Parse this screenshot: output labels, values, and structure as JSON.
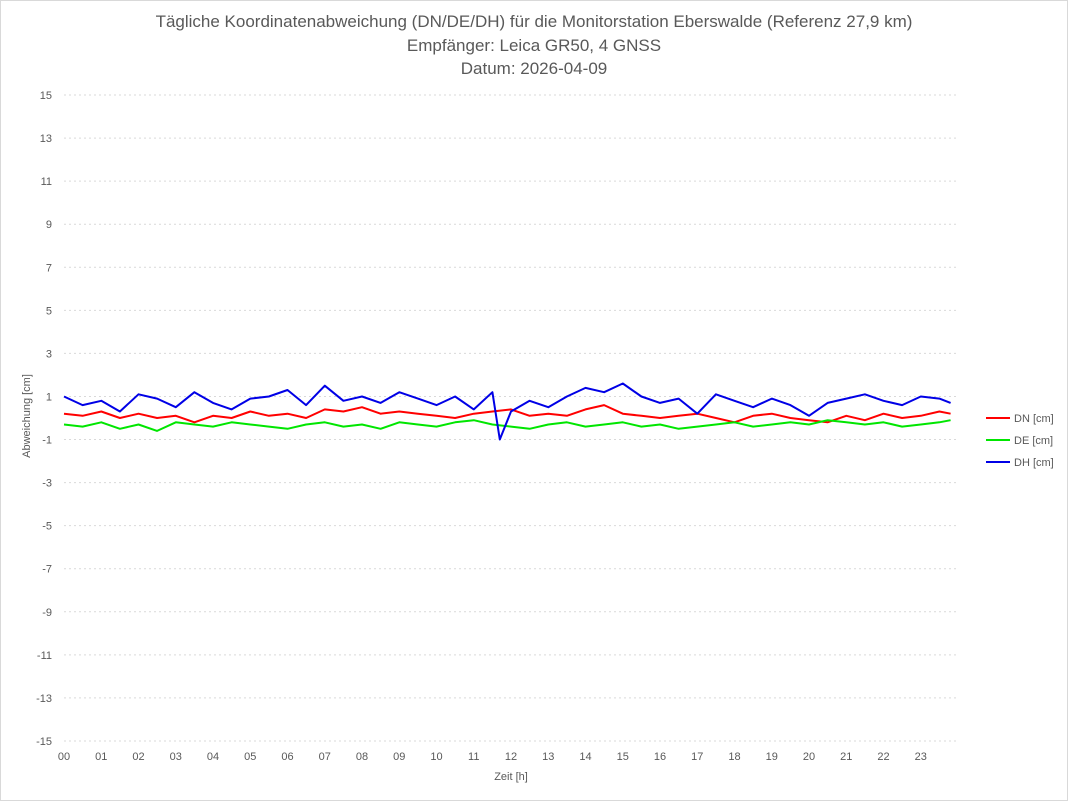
{
  "chart_data": {
    "type": "line",
    "title_lines": [
      "Tägliche Koordinatenabweichung (DN/DE/DH) für die Monitorstation Eberswalde (Referenz 27,9 km)",
      "Empfänger: Leica GR50, 4 GNSS",
      "Datum: 2026-04-09"
    ],
    "xlabel": "Zeit [h]",
    "ylabel": "Abweichung [cm]",
    "x_tick_labels": [
      "00",
      "01",
      "02",
      "03",
      "04",
      "05",
      "06",
      "07",
      "08",
      "09",
      "10",
      "11",
      "12",
      "13",
      "14",
      "15",
      "16",
      "17",
      "18",
      "19",
      "20",
      "21",
      "22",
      "23"
    ],
    "y_ticks": [
      15,
      13,
      11,
      9,
      7,
      5,
      3,
      1,
      -1,
      -3,
      -5,
      -7,
      -9,
      -11,
      -13,
      -15
    ],
    "xlim": [
      0,
      24
    ],
    "ylim": [
      -15,
      15
    ],
    "grid": "horizontal dotted",
    "legend_position": "right",
    "series": [
      {
        "name": "DN [cm]",
        "color": "#ff0000",
        "x": [
          0,
          0.5,
          1,
          1.5,
          2,
          2.5,
          3,
          3.5,
          4,
          4.5,
          5,
          5.5,
          6,
          6.5,
          7,
          7.5,
          8,
          8.5,
          9,
          9.5,
          10,
          10.5,
          11,
          11.5,
          12,
          12.5,
          13,
          13.5,
          14,
          14.5,
          15,
          15.5,
          16,
          16.5,
          17,
          17.5,
          18,
          18.5,
          19,
          19.5,
          20,
          20.5,
          21,
          21.5,
          22,
          22.5,
          23,
          23.5,
          23.8
        ],
        "y": [
          0.2,
          0.1,
          0.3,
          0,
          0.2,
          0,
          0.1,
          -0.2,
          0.1,
          0,
          0.3,
          0.1,
          0.2,
          0,
          0.4,
          0.3,
          0.5,
          0.2,
          0.3,
          0.2,
          0.1,
          0,
          0.2,
          0.3,
          0.4,
          0.1,
          0.2,
          0.1,
          0.4,
          0.6,
          0.2,
          0.1,
          0,
          0.1,
          0.2,
          0,
          -0.2,
          0.1,
          0.2,
          0,
          -0.1,
          -0.2,
          0.1,
          -0.1,
          0.2,
          0,
          0.1,
          0.3,
          0.2
        ]
      },
      {
        "name": "DE [cm]",
        "color": "#00e600",
        "x": [
          0,
          0.5,
          1,
          1.5,
          2,
          2.5,
          3,
          3.5,
          4,
          4.5,
          5,
          5.5,
          6,
          6.5,
          7,
          7.5,
          8,
          8.5,
          9,
          9.5,
          10,
          10.5,
          11,
          11.5,
          12,
          12.5,
          13,
          13.5,
          14,
          14.5,
          15,
          15.5,
          16,
          16.5,
          17,
          17.5,
          18,
          18.5,
          19,
          19.5,
          20,
          20.5,
          21,
          21.5,
          22,
          22.5,
          23,
          23.5,
          23.8
        ],
        "y": [
          -0.3,
          -0.4,
          -0.2,
          -0.5,
          -0.3,
          -0.6,
          -0.2,
          -0.3,
          -0.4,
          -0.2,
          -0.3,
          -0.4,
          -0.5,
          -0.3,
          -0.2,
          -0.4,
          -0.3,
          -0.5,
          -0.2,
          -0.3,
          -0.4,
          -0.2,
          -0.1,
          -0.3,
          -0.4,
          -0.5,
          -0.3,
          -0.2,
          -0.4,
          -0.3,
          -0.2,
          -0.4,
          -0.3,
          -0.5,
          -0.4,
          -0.3,
          -0.2,
          -0.4,
          -0.3,
          -0.2,
          -0.3,
          -0.1,
          -0.2,
          -0.3,
          -0.2,
          -0.4,
          -0.3,
          -0.2,
          -0.1
        ]
      },
      {
        "name": "DH [cm]",
        "color": "#0000e6",
        "x": [
          0,
          0.5,
          1,
          1.5,
          2,
          2.5,
          3,
          3.5,
          4,
          4.5,
          5,
          5.5,
          6,
          6.5,
          7,
          7.5,
          8,
          8.5,
          9,
          9.5,
          10,
          10.5,
          11,
          11.5,
          11.7,
          12,
          12.5,
          13,
          13.5,
          14,
          14.5,
          15,
          15.5,
          16,
          16.5,
          17,
          17.5,
          18,
          18.5,
          19,
          19.5,
          20,
          20.5,
          21,
          21.5,
          22,
          22.5,
          23,
          23.5,
          23.8
        ],
        "y": [
          1.0,
          0.6,
          0.8,
          0.3,
          1.1,
          0.9,
          0.5,
          1.2,
          0.7,
          0.4,
          0.9,
          1.0,
          1.3,
          0.6,
          1.5,
          0.8,
          1.0,
          0.7,
          1.2,
          0.9,
          0.6,
          1.0,
          0.4,
          1.2,
          -1.0,
          0.3,
          0.8,
          0.5,
          1.0,
          1.4,
          1.2,
          1.6,
          1.0,
          0.7,
          0.9,
          0.2,
          1.1,
          0.8,
          0.5,
          0.9,
          0.6,
          0.1,
          0.7,
          0.9,
          1.1,
          0.8,
          0.6,
          1.0,
          0.9,
          0.7
        ]
      }
    ]
  }
}
